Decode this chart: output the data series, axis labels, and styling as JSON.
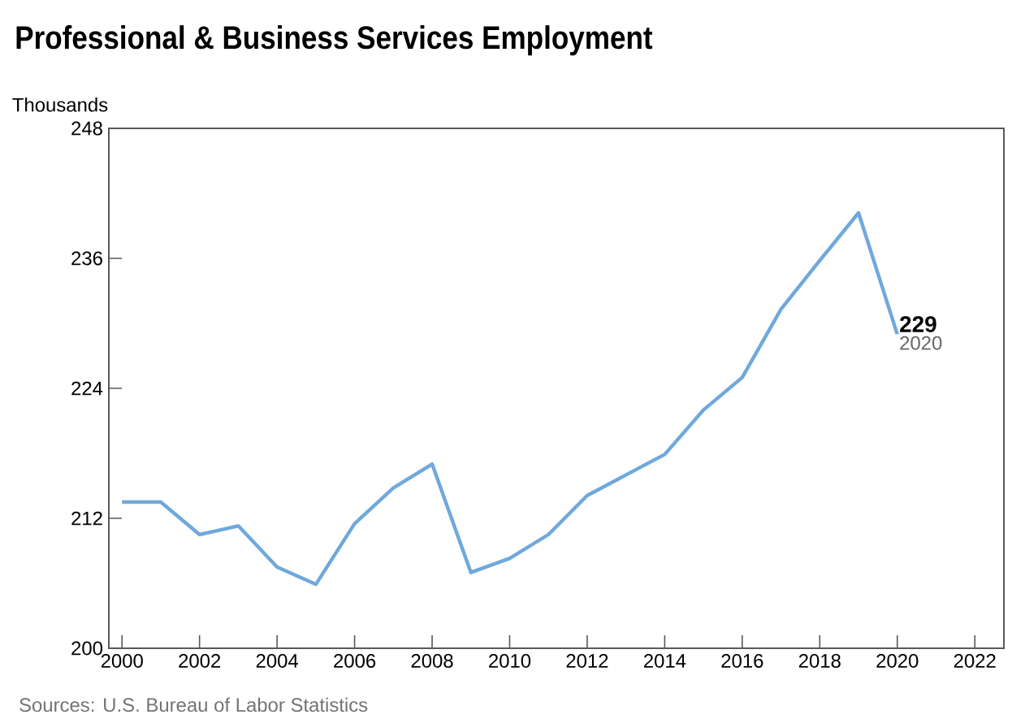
{
  "chart_data": {
    "type": "line",
    "title": "Professional & Business Services Employment",
    "ylabel": "Thousands",
    "x": [
      2000,
      2001,
      2002,
      2003,
      2004,
      2005,
      2006,
      2007,
      2008,
      2009,
      2010,
      2011,
      2012,
      2013,
      2014,
      2015,
      2016,
      2017,
      2018,
      2019,
      2020
    ],
    "series": [
      {
        "color": "#6fa8dc",
        "values": [
          213.5,
          213.5,
          210.5,
          211.3,
          207.5,
          205.9,
          211.5,
          214.8,
          217,
          207,
          208.3,
          210.5,
          214.1,
          216,
          217.9,
          222,
          225,
          231.3,
          235.8,
          240.2,
          229
        ]
      }
    ],
    "xlim": [
      1999.66,
      2022.75
    ],
    "xticks": [
      2000,
      2002,
      2004,
      2006,
      2008,
      2010,
      2012,
      2014,
      2016,
      2018,
      2020,
      2022
    ],
    "ylim": [
      200,
      248
    ],
    "yticks": [
      200,
      212,
      224,
      236,
      248
    ],
    "grid": false,
    "marker": "none",
    "line_style": "solid",
    "annotations": [
      {
        "text": "229",
        "x": 2020,
        "y": 229
      },
      {
        "text": "2020",
        "x": 2020,
        "y": 229
      },
      "Sources: U.S. Bureau of Labor Statistics"
    ]
  }
}
